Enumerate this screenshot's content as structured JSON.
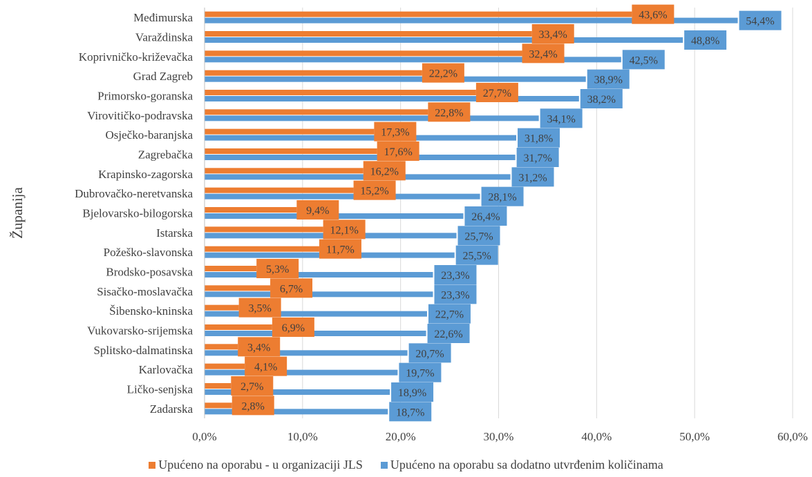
{
  "chart_data": {
    "type": "bar",
    "orientation": "horizontal",
    "ylabel": "Županija",
    "xlabel": "",
    "xlim": [
      0,
      60
    ],
    "x_ticks": [
      "0,0%",
      "10,0%",
      "20,0%",
      "30,0%",
      "40,0%",
      "50,0%",
      "60,0%"
    ],
    "grid": "vertical",
    "legend_position": "bottom",
    "categories": [
      "Međimurska",
      "Varaždinska",
      "Koprivničko-križevačka",
      "Grad Zagreb",
      "Primorsko-goranska",
      "Virovitičko-podravska",
      "Osječko-baranjska",
      "Zagrebačka",
      "Krapinsko-zagorska",
      "Dubrovačko-neretvanska",
      "Bjelovarsko-bilogorska",
      "Istarska",
      "Požeško-slavonska",
      "Brodsko-posavska",
      "Sisačko-moslavačka",
      "Šibensko-kninska",
      "Vukovarsko-srijemska",
      "Splitsko-dalmatinska",
      "Karlovačka",
      "Ličko-senjska",
      "Zadarska"
    ],
    "series": [
      {
        "name": "Upućeno na oporabu - u organizaciji JLS",
        "color": "#ED7D31",
        "values": [
          43.6,
          33.4,
          32.4,
          22.2,
          27.7,
          22.8,
          17.3,
          17.6,
          16.2,
          15.2,
          9.4,
          12.1,
          11.7,
          5.3,
          6.7,
          3.5,
          6.9,
          3.4,
          4.1,
          2.7,
          2.8
        ],
        "labels": [
          "43,6%",
          "33,4%",
          "32,4%",
          "22,2%",
          "27,7%",
          "22,8%",
          "17,3%",
          "17,6%",
          "16,2%",
          "15,2%",
          "9,4%",
          "12,1%",
          "11,7%",
          "5,3%",
          "6,7%",
          "3,5%",
          "6,9%",
          "3,4%",
          "4,1%",
          "2,7%",
          "2,8%"
        ]
      },
      {
        "name": "Upućeno na oporabu sa dodatno utvrđenim količinama",
        "color": "#5B9BD5",
        "values": [
          54.4,
          48.8,
          42.5,
          38.9,
          38.2,
          34.1,
          31.8,
          31.7,
          31.2,
          28.1,
          26.4,
          25.7,
          25.5,
          23.3,
          23.3,
          22.7,
          22.6,
          20.7,
          19.7,
          18.9,
          18.7
        ],
        "labels": [
          "54,4%",
          "48,8%",
          "42,5%",
          "38,9%",
          "38,2%",
          "34,1%",
          "31,8%",
          "31,7%",
          "31,2%",
          "28,1%",
          "26,4%",
          "25,7%",
          "25,5%",
          "23,3%",
          "23,3%",
          "22,7%",
          "22,6%",
          "20,7%",
          "19,7%",
          "18,9%",
          "18,7%"
        ]
      }
    ]
  }
}
